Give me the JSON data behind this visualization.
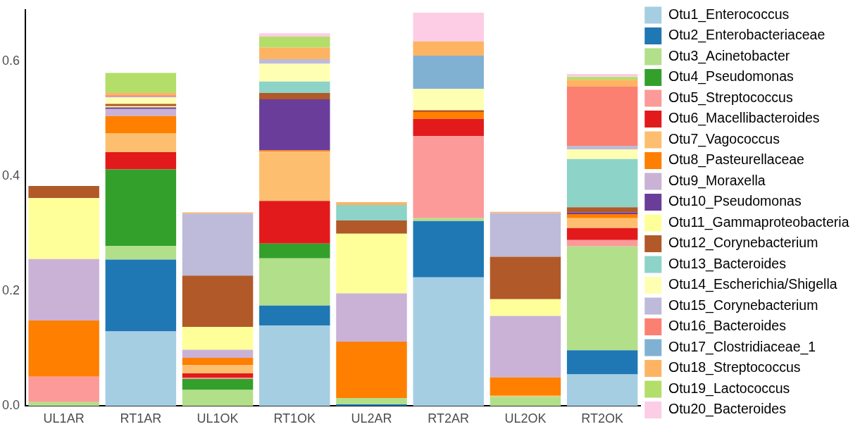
{
  "chart_data": {
    "type": "bar",
    "stacked": true,
    "legend": "right",
    "grid": false,
    "categories": [
      "UL1AR",
      "RT1AR",
      "UL1OK",
      "RT1OK",
      "UL2AR",
      "RT2AR",
      "UL2OK",
      "RT2OK"
    ],
    "ylim": [
      0,
      0.69
    ],
    "yticks": [
      {
        "value": 0,
        "label": "0.0"
      },
      {
        "value": 0.2,
        "label": "0.2"
      },
      {
        "value": 0.4,
        "label": "0.4"
      },
      {
        "value": 0.6,
        "label": "0.6"
      }
    ],
    "series": [
      {
        "name": "Otu1_Enterococcus",
        "color": "#a6cee3",
        "values": [
          0,
          0.13,
          0,
          0.14,
          null,
          0.224,
          0,
          0.055
        ]
      },
      {
        "name": "Otu2_Enterobacteriaceae",
        "color": "#1f78b4",
        "values": [
          0,
          0.125,
          null,
          0.035,
          0.003,
          0.098,
          0,
          0.042
        ]
      },
      {
        "name": "Otu3_Acinetobacter",
        "color": "#b2df8a",
        "values": [
          0.007,
          0.024,
          0.028,
          0.082,
          0.011,
          0.005,
          0.016,
          0.181
        ]
      },
      {
        "name": "Otu4_Pseudomonas",
        "color": "#33a02c",
        "values": [
          0,
          0.133,
          0.019,
          0.026,
          0,
          0,
          0,
          0
        ]
      },
      {
        "name": "Otu5_Streptococcus",
        "color": "#fb9a99",
        "values": [
          0.044,
          0,
          0.002,
          0,
          0,
          0.143,
          0,
          0.011
        ]
      },
      {
        "name": "Otu6_Macellibacteroides",
        "color": "#e31a1c",
        "values": [
          0,
          0.03,
          0.008,
          0.074,
          0,
          0.03,
          0,
          0.021
        ]
      },
      {
        "name": "Otu7_Vagococcus",
        "color": "#fdbf6f",
        "values": [
          0,
          0.033,
          0.014,
          0.086,
          0,
          0,
          0.002,
          0.017
        ]
      },
      {
        "name": "Otu8_Pasteurellaceae",
        "color": "#ff7f00",
        "values": [
          0.098,
          0.03,
          0.013,
          0.002,
          0.098,
          0.012,
          0.032,
          0.007
        ]
      },
      {
        "name": "Otu9_Moraxella",
        "color": "#cab2d6",
        "values": [
          0.107,
          0.012,
          0.014,
          0,
          0.084,
          0,
          0.107,
          0
        ]
      },
      {
        "name": "Otu10_Pseudomonas",
        "color": "#6a3d9a",
        "values": [
          0,
          0.003,
          0,
          0.089,
          0,
          0,
          0,
          0.003
        ]
      },
      {
        "name": "Otu11_Gammaproteobacteria",
        "color": "#ffff99",
        "values": [
          0.106,
          0.002,
          0.04,
          0,
          0.104,
          0,
          0.029,
          0
        ]
      },
      {
        "name": "Otu12_Corynebacterium",
        "color": "#b15928",
        "values": [
          0.021,
          0.004,
          0.089,
          0.011,
          0.023,
          0.003,
          0.074,
          0.009
        ]
      },
      {
        "name": "Otu13_Bacteroides",
        "color": "#8dd3c7",
        "values": [
          0,
          0,
          0,
          0.02,
          0.027,
          0,
          0,
          0.084
        ]
      },
      {
        "name": "Otu14_Escherichia/Shigella",
        "color": "#ffffb3",
        "values": [
          0,
          0.011,
          0,
          0.031,
          0,
          0.037,
          0,
          0.017
        ]
      },
      {
        "name": "Otu15_Corynebacterium",
        "color": "#bebada",
        "values": [
          0,
          0.002,
          0.108,
          0.008,
          0,
          0,
          0.076,
          0.006
        ]
      },
      {
        "name": "Otu16_Bacteroides",
        "color": "#fb8072",
        "values": [
          0,
          0.002,
          0,
          0,
          0,
          0,
          0,
          0.103
        ]
      },
      {
        "name": "Otu17_Clostridiaceae_1",
        "color": "#80b1d3",
        "values": [
          0,
          0,
          0,
          0,
          0,
          0.058,
          0,
          0
        ]
      },
      {
        "name": "Otu18_Streptococcus",
        "color": "#fdb462",
        "values": [
          0,
          0.004,
          0.002,
          0.02,
          0.005,
          0.025,
          0.002,
          0.012
        ]
      },
      {
        "name": "Otu19_Lactococcus",
        "color": "#b3de69",
        "values": [
          0,
          0.035,
          0,
          0.019,
          0,
          0,
          0,
          0.005
        ]
      },
      {
        "name": "Otu20_Bacteroides",
        "color": "#fccde5",
        "values": [
          0,
          0,
          0,
          0.006,
          0,
          0.05,
          0,
          0.005
        ]
      }
    ]
  }
}
